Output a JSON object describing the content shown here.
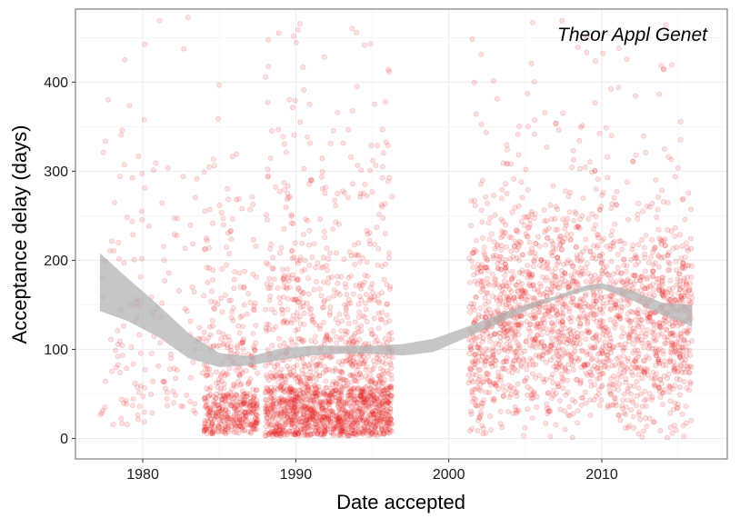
{
  "chart_data": {
    "type": "scatter",
    "title": "",
    "xlabel": "Date accepted",
    "ylabel": "Acceptance delay (days)",
    "annotation": "Theor Appl Genet",
    "xlim": [
      1975.6,
      2018.2
    ],
    "ylim": [
      -23,
      482
    ],
    "x_ticks": [
      1980,
      1990,
      2000,
      2010
    ],
    "y_ticks": [
      0,
      100,
      200,
      300,
      400
    ],
    "x_tick_labels": [
      "1980",
      "1990",
      "2000",
      "2010"
    ],
    "y_tick_labels": [
      "0",
      "100",
      "200",
      "300",
      "400"
    ],
    "grid": true,
    "legend": "none",
    "point_color": "#e31a1c",
    "point_alpha": 0.12,
    "band_color": "#b3b3b3",
    "series": [
      {
        "x_range": [
          1977.2,
          1996.4
        ],
        "y_median": 80,
        "note_density": "sparse before 1984, dense 1984-1996"
      },
      {
        "x_range": [
          2001.3,
          2015.9
        ],
        "y_median": 120
      }
    ],
    "smooth": {
      "x": [
        1977.2,
        1979,
        1981,
        1983,
        1985,
        1987,
        1989,
        1991,
        1993,
        1995,
        1997,
        1999,
        2001,
        2003,
        2005,
        2007,
        2009,
        2010,
        2012,
        2014,
        2015.9
      ],
      "upper": [
        208,
        180,
        150,
        118,
        96,
        92,
        101,
        104,
        104,
        104,
        106,
        112,
        124,
        138,
        150,
        160,
        172,
        174,
        166,
        152,
        150
      ],
      "lower": [
        143,
        132,
        114,
        90,
        80,
        82,
        88,
        93,
        95,
        95,
        93,
        97,
        112,
        127,
        143,
        156,
        166,
        168,
        155,
        138,
        126
      ]
    }
  }
}
